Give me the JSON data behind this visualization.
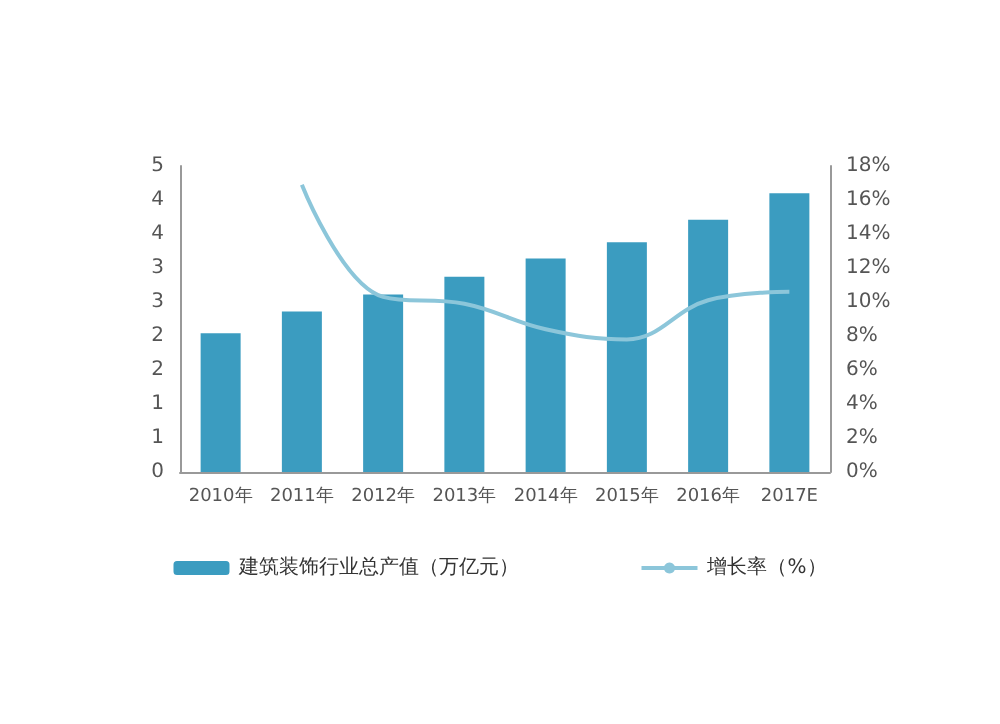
{
  "chart_data": {
    "type": "bar",
    "categories": [
      "2010年",
      "2011年",
      "2012年",
      "2013年",
      "2014年",
      "2015年",
      "2016年",
      "2017E"
    ],
    "series": [
      {
        "name": "建筑装饰行业总产值（万亿元）",
        "color": "#3b9cc0",
        "values": [
          2.04,
          2.36,
          2.61,
          2.87,
          3.14,
          3.38,
          3.71,
          4.1
        ]
      },
      {
        "name": "增长率（%）",
        "type": "line",
        "axis": "y2",
        "color": "#8cc6da",
        "values": [
          null,
          16.9,
          10.3,
          9.9,
          8.4,
          7.8,
          10.1,
          10.6
        ]
      }
    ],
    "ylim": [
      0,
      4.5
    ],
    "yticks": [
      0,
      {
        "value": 0.5,
        "label": "1"
      },
      1,
      {
        "value": 1.5,
        "label": "2"
      },
      2,
      {
        "value": 2.5,
        "label": "3"
      },
      3,
      {
        "value": 3.5,
        "label": "4"
      },
      4,
      {
        "value": 4.5,
        "label": "5"
      }
    ],
    "y2lim": [
      0,
      18
    ],
    "y2ticks": [
      {
        "value": 0,
        "label": "0%"
      },
      {
        "value": 2,
        "label": "2%"
      },
      {
        "value": 4,
        "label": "4%"
      },
      {
        "value": 6,
        "label": "6%"
      },
      {
        "value": 8,
        "label": "8%"
      },
      {
        "value": 10,
        "label": "10%"
      },
      {
        "value": 12,
        "label": "12%"
      },
      {
        "value": 14,
        "label": "14%"
      },
      {
        "value": 16,
        "label": "16%"
      },
      {
        "value": 18,
        "label": "18%"
      }
    ],
    "grid": false,
    "legend": "bottom",
    "marker": "none"
  }
}
